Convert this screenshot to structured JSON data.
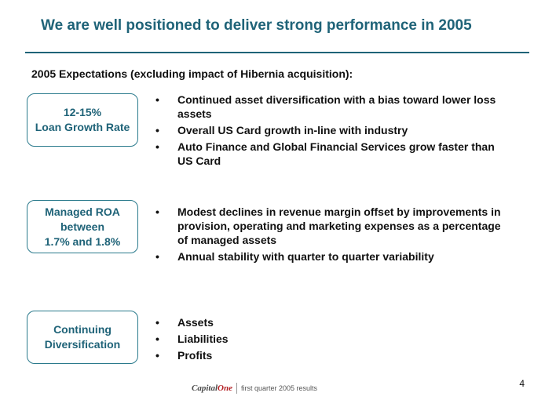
{
  "title": "We are well positioned to deliver strong performance in 2005",
  "subtitle": "2005 Expectations (excluding impact of Hibernia acquisition):",
  "sections": [
    {
      "label_lines": [
        "12-15%",
        "Loan Growth Rate"
      ],
      "bullets": [
        "Continued asset diversification with a bias toward lower loss assets",
        "Overall US Card growth in-line with industry",
        "Auto Finance and Global Financial Services grow faster than US Card"
      ]
    },
    {
      "label_lines": [
        "Managed ROA",
        "between",
        "1.7% and 1.8%"
      ],
      "bullets": [
        "Modest declines in revenue margin offset by improvements in provision, operating and marketing expenses as a percentage of managed assets",
        "Annual stability with quarter to quarter variability"
      ]
    },
    {
      "label_lines": [
        "Continuing",
        "Diversification"
      ],
      "bullets": [
        "Assets",
        "Liabilities",
        "Profits"
      ]
    }
  ],
  "bullet_glyph": "•",
  "footer": {
    "logo_capital": "Capital",
    "logo_one": "One",
    "text": "first quarter 2005 results"
  },
  "page_number": "4"
}
